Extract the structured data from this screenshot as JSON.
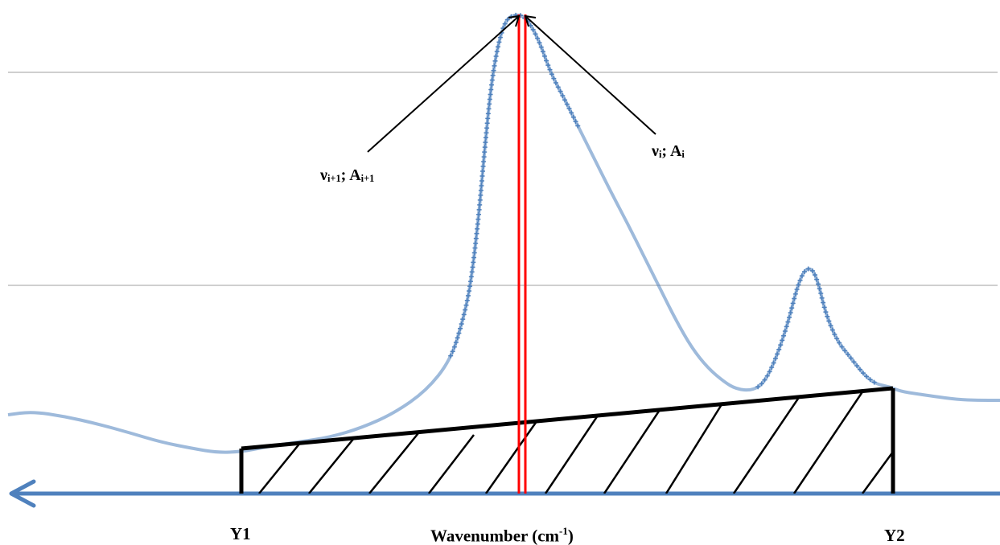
{
  "labels": {
    "peak_left": {
      "var": "ν",
      "var_sub": "i+1",
      "sep": "; A",
      "a_sub": "i+1"
    },
    "peak_right": {
      "var": "ν",
      "var_sub": "i",
      "sep": "; A",
      "a_sub": "i"
    },
    "y1": "Y1",
    "y2": "Y2",
    "axis_title": "Wavenumber (cm",
    "axis_title_sup": "-1",
    "axis_title_close": ")"
  },
  "colors": {
    "spectrum": "#4f81bd",
    "axis": "#4f81bd",
    "gridline": "#bfbfbf",
    "peak_marker": "#ff0000",
    "baseline": "#000000"
  },
  "icons": [
    "left-arrowhead-icon"
  ]
}
